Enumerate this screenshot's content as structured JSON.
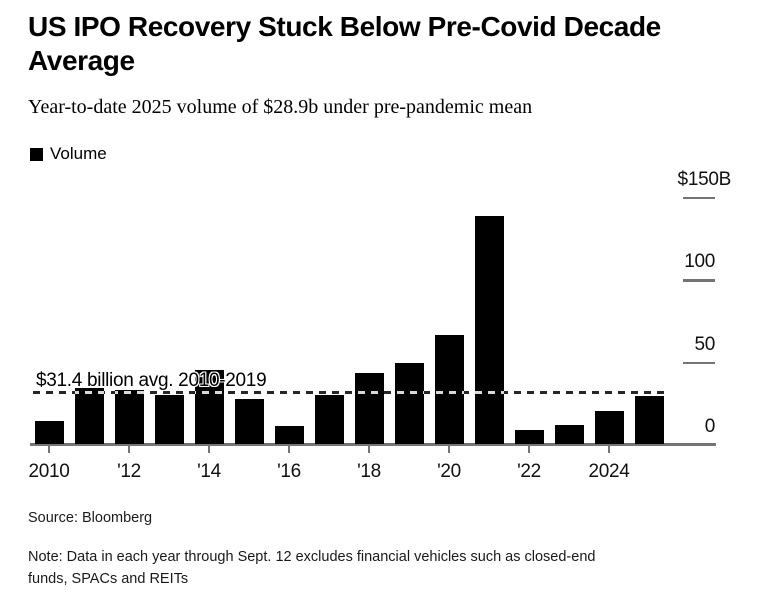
{
  "header": {
    "title": "US IPO Recovery Stuck Below Pre-Covid Decade Average",
    "subtitle": "Year-to-date 2025 volume of $28.9b under pre-pandemic mean"
  },
  "legend": {
    "label": "Volume",
    "swatch_color": "#000000"
  },
  "chart_data": {
    "type": "bar",
    "title": "US IPO Recovery Stuck Below Pre-Covid Decade Average",
    "subtitle": "Year-to-date 2025 volume of $28.9b under pre-pandemic mean",
    "unit": "USD billions",
    "categories": [
      2010,
      2011,
      2012,
      2013,
      2014,
      2015,
      2016,
      2017,
      2018,
      2019,
      2020,
      2021,
      2022,
      2023,
      2024,
      2025
    ],
    "series": [
      {
        "name": "Volume",
        "values": [
          14,
          34,
          33,
          30,
          45,
          27,
          11,
          30,
          43,
          49,
          66,
          138,
          8.5,
          11.5,
          20,
          28.9
        ]
      }
    ],
    "ylim": [
      0,
      150
    ],
    "grid": false,
    "legend_position": "top-left",
    "y_axis_side": "right",
    "yticks": [
      {
        "label": "$150B",
        "value": 150
      },
      {
        "label": "100",
        "value": 100
      },
      {
        "label": "50",
        "value": 50
      },
      {
        "label": "0",
        "value": 0
      }
    ],
    "xticks": [
      {
        "label": "2010",
        "year": 2010
      },
      {
        "label": "'12",
        "year": 2012
      },
      {
        "label": "'14",
        "year": 2014
      },
      {
        "label": "'16",
        "year": 2016
      },
      {
        "label": "'18",
        "year": 2018
      },
      {
        "label": "'20",
        "year": 2020
      },
      {
        "label": "'22",
        "year": 2022
      },
      {
        "label": "2024",
        "year": 2024
      }
    ],
    "avg_line": {
      "label": "$31.4 billion avg. 2010-2019",
      "value": 31.4,
      "style": "dashed"
    },
    "colors": {
      "bar": "#000000",
      "axis": "#757575",
      "text": "#000000",
      "background": "#ffffff"
    }
  },
  "footer": {
    "source": "Source: Bloomberg",
    "note_lines": [
      "Note: Data in each year through Sept. 12 excludes financial vehicles such as closed-end",
      "funds, SPACs and REITs"
    ]
  }
}
